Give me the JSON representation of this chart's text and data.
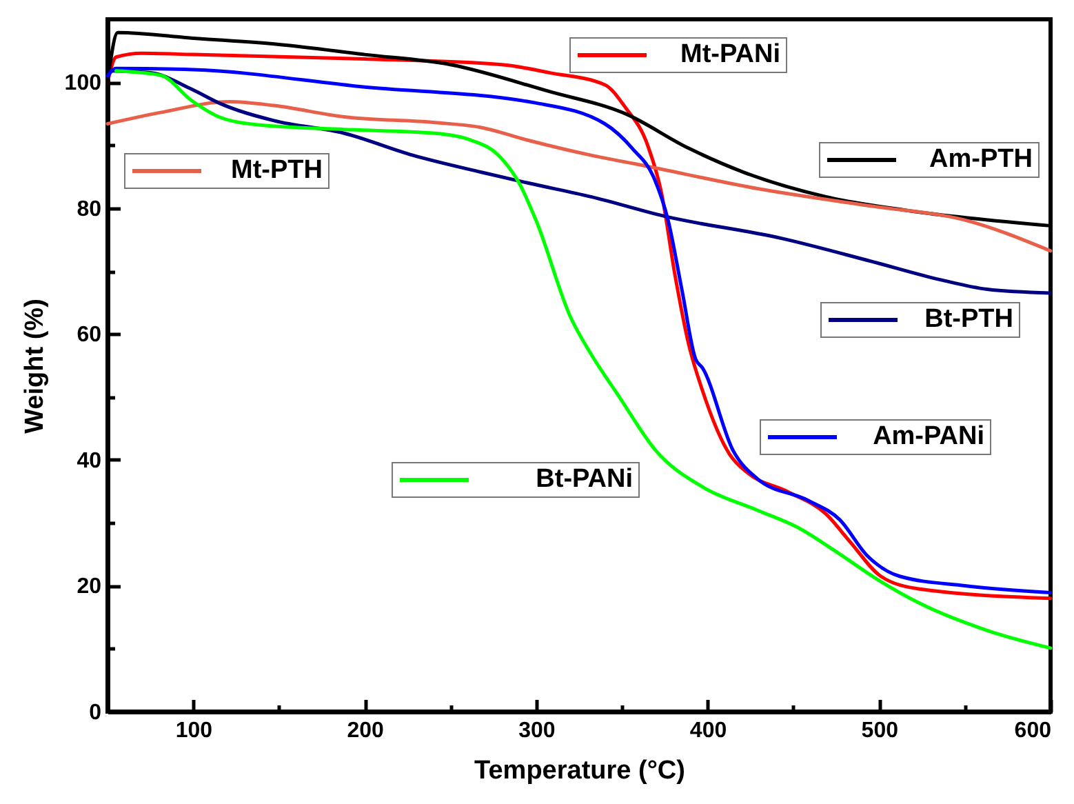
{
  "chart_data": {
    "type": "line",
    "xlabel": "Temperature (°C)",
    "ylabel": "Weight (%)",
    "xlim": [
      50,
      600
    ],
    "ylim": [
      0,
      110
    ],
    "xticks": [
      100,
      {
        "value": 150,
        "label": null
      },
      200,
      {
        "value": 250,
        "label": null
      },
      300,
      {
        "value": 350,
        "label": null
      },
      400,
      {
        "value": 450,
        "label": null
      },
      500,
      {
        "value": 550,
        "label": null
      },
      600
    ],
    "yticks": [
      0,
      {
        "value": 10,
        "label": null
      },
      20,
      {
        "value": 30,
        "label": null
      },
      40,
      {
        "value": 50,
        "label": null
      },
      60,
      {
        "value": 70,
        "label": null
      },
      80,
      {
        "value": 90,
        "label": null
      },
      100
    ],
    "grid": false,
    "legend": "right",
    "series": [
      {
        "name": "Mt-PANi",
        "color": "#ff0000",
        "x": [
          50,
          55,
          70,
          100,
          200,
          280,
          308,
          340,
          352,
          365,
          373,
          381,
          389,
          397,
          413,
          423,
          447,
          469,
          483,
          501,
          523,
          600
        ],
        "values": [
          100,
          104,
          104.6,
          104.4,
          103.7,
          102.8,
          101.5,
          99.6,
          96,
          90,
          82.5,
          69.3,
          58.3,
          51,
          40.8,
          38,
          34.9,
          31.4,
          27,
          21.5,
          19.5,
          18
        ]
      },
      {
        "name": "Am-PTH",
        "color": "#000000",
        "x": [
          50,
          56,
          100,
          150,
          200,
          250,
          308,
          352,
          389,
          421,
          469,
          517,
          600
        ],
        "values": [
          100,
          107.9,
          107,
          106,
          104.4,
          102.8,
          98.5,
          95,
          89.5,
          85.7,
          81.8,
          79.6,
          77.2
        ]
      },
      {
        "name": "Mt-PTH",
        "color": "#e8604a",
        "x": [
          50,
          81,
          121,
          147,
          188,
          241,
          268,
          295,
          332,
          362,
          429,
          496,
          550,
          600
        ],
        "values": [
          93.4,
          95.2,
          96.9,
          96.3,
          94.5,
          93.6,
          92.8,
          90.8,
          88.4,
          86.8,
          83.1,
          80.3,
          78.1,
          73.2
        ]
      },
      {
        "name": "Bt-PTH",
        "color": "#000080",
        "x": [
          52,
          75,
          99,
          115,
          147,
          188,
          228,
          268,
          295,
          332,
          375,
          443,
          496,
          536,
          563,
          600
        ],
        "values": [
          101.8,
          101.5,
          98.9,
          96.7,
          93.9,
          91.9,
          88.4,
          85.7,
          84,
          81.8,
          78.7,
          75.2,
          71.5,
          68.6,
          67.1,
          66.5
        ]
      },
      {
        "name": "Am-PANi",
        "color": "#0000ff",
        "x": [
          50,
          55,
          100,
          198,
          300,
          340,
          356,
          369,
          377,
          385,
          393,
          397,
          415,
          429,
          459,
          477,
          493,
          512,
          550,
          600
        ],
        "values": [
          101,
          102.2,
          102,
          99.3,
          96.7,
          93.4,
          89.5,
          84.6,
          78,
          67,
          56,
          54.6,
          41.4,
          37,
          33.5,
          30.5,
          24.8,
          21.5,
          20,
          18.9
        ]
      },
      {
        "name": "Bt-PANi",
        "color": "#00ff00",
        "x": [
          55,
          81,
          99,
          115,
          139,
          188,
          241,
          262,
          278,
          290,
          300,
          320,
          332,
          348,
          370,
          397,
          429,
          453,
          475,
          499,
          523,
          563,
          600
        ],
        "values": [
          101.8,
          101.1,
          97.1,
          94.5,
          93.2,
          92.5,
          91.9,
          90.8,
          88.4,
          84,
          78,
          62.7,
          56.8,
          50.2,
          41.4,
          35.7,
          32,
          29.2,
          25.4,
          21,
          17.3,
          12.9,
          10.1
        ]
      }
    ]
  }
}
